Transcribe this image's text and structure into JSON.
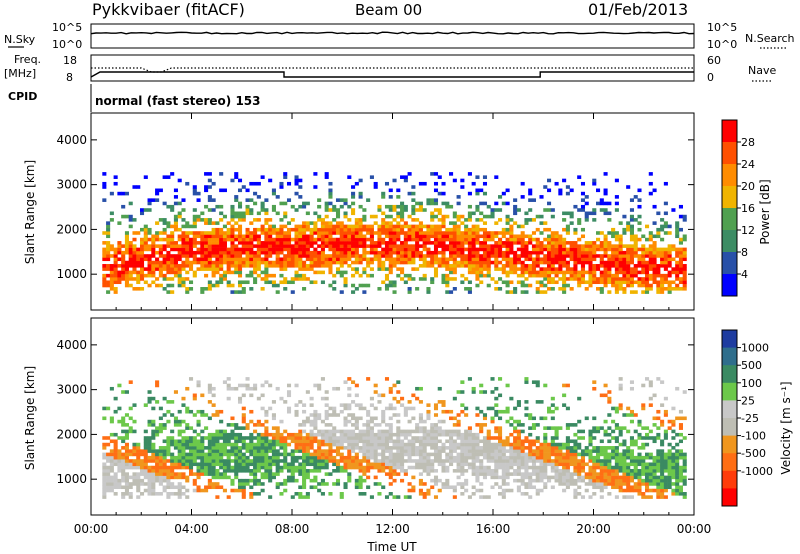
{
  "header": {
    "station": "Pykkvibaer (fitACF)",
    "beam": "Beam 00",
    "date": "01/Feb/2013"
  },
  "top_panels": {
    "nsky_label": "N.Sky",
    "nsearch_label": "N.Search",
    "nsky_ticks": [
      "10^5",
      "10^0"
    ],
    "nsearch_ticks": [
      "10^5",
      "10^0"
    ],
    "freq_label": "Freq.",
    "freq_unit": "[MHz]",
    "freq_ticks": [
      "18",
      "8"
    ],
    "nave_label": "Nave",
    "nave_ticks": [
      "60",
      "0"
    ],
    "cpid_label": "CPID",
    "cpid_text": "normal (fast stereo) 153"
  },
  "colors": {
    "power": [
      "#0000ff",
      "#2850a8",
      "#3c8c64",
      "#50a050",
      "#f0b400",
      "#ff8c00",
      "#ff5000",
      "#ff0000"
    ],
    "velocity": [
      "#1e3ca0",
      "#2f6e8c",
      "#3a8a62",
      "#6cc84a",
      "#c8c8c8",
      "#bebeb4",
      "#f0961e",
      "#ff6e14",
      "#ff3c0a",
      "#ff0000"
    ]
  },
  "chart_data": [
    {
      "type": "heatmap",
      "name": "power",
      "ylabel": "Slant Range [km]",
      "yticks": [
        "1000",
        "2000",
        "3000",
        "4000"
      ],
      "ylim": [
        200,
        4600
      ],
      "colorbar_label": "Power [dB]",
      "colorbar_ticks": [
        "4",
        "8",
        "12",
        "16",
        "20",
        "24",
        "28"
      ],
      "colorbar_range": [
        0,
        32
      ]
    },
    {
      "type": "heatmap",
      "name": "velocity",
      "ylabel": "Slant Range [km]",
      "yticks": [
        "1000",
        "2000",
        "3000",
        "4000"
      ],
      "ylim": [
        200,
        4600
      ],
      "colorbar_label": "Velocity [m s⁻¹]",
      "colorbar_ticks": [
        "1000",
        "500",
        "100",
        "25",
        "-25",
        "-100",
        "-500",
        "-1000"
      ]
    }
  ],
  "xaxis": {
    "label": "Time UT",
    "ticks": [
      "00:00",
      "04:00",
      "08:00",
      "12:00",
      "16:00",
      "20:00",
      "00:00"
    ]
  }
}
